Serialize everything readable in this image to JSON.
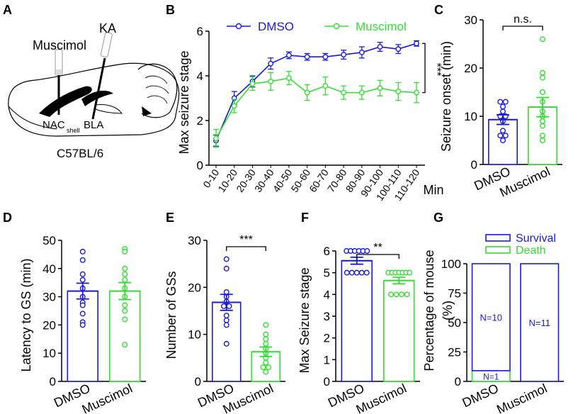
{
  "colors": {
    "dmso": "#1a1adc",
    "muscimol": "#33dd33",
    "axis": "#000000"
  },
  "panels": {
    "A": {
      "letter": "A",
      "muscimol": "Muscimol",
      "ka": "KA",
      "nac": "NAC",
      "shell": "shell",
      "bla": "BLA",
      "strain": "C57BL/6"
    },
    "B": {
      "letter": "B"
    },
    "C": {
      "letter": "C"
    },
    "D": {
      "letter": "D"
    },
    "E": {
      "letter": "E"
    },
    "F": {
      "letter": "F"
    },
    "G": {
      "letter": "G"
    }
  },
  "chart_data": [
    {
      "id": "B",
      "type": "line",
      "title": "",
      "xlabel": "Min",
      "ylabel": "Max seizure stage",
      "categories": [
        "0-10",
        "10-20",
        "20-30",
        "30-40",
        "40-50",
        "50-60",
        "60-70",
        "70-80",
        "80-90",
        "90-100",
        "100-110",
        "110-120"
      ],
      "ylim": [
        0,
        6
      ],
      "yticks": [
        "0",
        "2",
        "4",
        "6"
      ],
      "series": [
        {
          "name": "DMSO",
          "values": [
            1.1,
            3.0,
            3.75,
            4.55,
            4.92,
            4.85,
            4.85,
            4.95,
            5.05,
            5.3,
            5.2,
            5.45
          ],
          "err": [
            0.25,
            0.3,
            0.25,
            0.25,
            0.15,
            0.15,
            0.15,
            0.2,
            0.25,
            0.2,
            0.2,
            0.12
          ]
        },
        {
          "name": "Muscimol",
          "values": [
            1.2,
            2.65,
            3.65,
            3.75,
            3.9,
            3.25,
            3.55,
            3.25,
            3.25,
            3.45,
            3.3,
            3.25
          ],
          "err": [
            0.4,
            0.3,
            0.3,
            0.4,
            0.3,
            0.35,
            0.4,
            0.3,
            0.3,
            0.35,
            0.4,
            0.45
          ]
        }
      ],
      "significance": "***"
    },
    {
      "id": "C",
      "type": "bar",
      "ylabel": "Seizure onset (min)",
      "ylim": [
        0,
        30
      ],
      "yticks": [
        "0",
        "10",
        "20",
        "30"
      ],
      "categories": [
        "DMSO",
        "Muscimol"
      ],
      "values": [
        9.3,
        11.9
      ],
      "err": [
        1.0,
        2.0
      ],
      "points": [
        [
          13,
          13,
          12,
          11,
          10,
          10,
          9,
          7,
          6,
          6,
          5
        ],
        [
          26,
          19,
          18,
          15,
          13,
          11,
          10,
          9,
          8,
          6,
          5
        ]
      ],
      "significance": "n.s."
    },
    {
      "id": "D",
      "type": "bar",
      "ylabel": "Latency to GS (min)",
      "ylim": [
        0,
        50
      ],
      "yticks": [
        "0",
        "10",
        "20",
        "30",
        "40",
        "50"
      ],
      "categories": [
        "DMSO",
        "Muscimol"
      ],
      "values": [
        32,
        32
      ],
      "err": [
        2.8,
        3.0
      ],
      "points": [
        [
          46,
          43,
          38,
          36,
          33,
          30,
          28,
          27,
          24,
          21,
          20
        ],
        [
          47,
          46,
          40,
          38,
          36,
          33,
          30,
          27,
          25,
          22,
          13
        ]
      ],
      "significance": ""
    },
    {
      "id": "E",
      "type": "bar",
      "ylabel": "Number of GSs",
      "ylim": [
        0,
        30
      ],
      "yticks": [
        "0",
        "10",
        "20",
        "30"
      ],
      "categories": [
        "DMSO",
        "Muscimol"
      ],
      "values": [
        16.8,
        6.3
      ],
      "err": [
        1.7,
        1.0
      ],
      "points": [
        [
          26,
          24,
          19,
          18,
          17,
          16,
          16,
          14,
          13,
          12,
          8
        ],
        [
          12,
          10,
          9,
          8,
          7,
          6,
          5,
          4,
          3,
          3,
          2
        ]
      ],
      "significance": "***"
    },
    {
      "id": "F",
      "type": "bar",
      "ylabel": "Max Seizure stage",
      "ylim": [
        0,
        6
      ],
      "yticks": [
        "0",
        "1",
        "2",
        "3",
        "4",
        "5",
        "6"
      ],
      "categories": [
        "DMSO",
        "Muscimol"
      ],
      "values": [
        5.55,
        4.64
      ],
      "err": [
        0.16,
        0.15
      ],
      "points": [
        [
          6,
          6,
          6,
          6,
          6,
          6,
          5,
          5,
          5,
          5,
          5
        ],
        [
          5,
          5,
          5,
          5,
          5,
          5,
          5,
          4,
          4,
          4,
          4
        ]
      ],
      "significance": "**"
    },
    {
      "id": "G",
      "type": "bar",
      "ylabel": "Percentage of mouse (%)",
      "ylim": [
        0,
        100
      ],
      "yticks": [
        "0",
        "25",
        "50",
        "75",
        "100"
      ],
      "categories": [
        "DMSO",
        "Muscimol"
      ],
      "series": [
        {
          "name": "Survival",
          "values": [
            90.9,
            100
          ],
          "labels": [
            "N=10",
            "N=11"
          ]
        },
        {
          "name": "Death",
          "values": [
            9.1,
            0
          ],
          "labels": [
            "N=1",
            ""
          ]
        }
      ]
    }
  ]
}
